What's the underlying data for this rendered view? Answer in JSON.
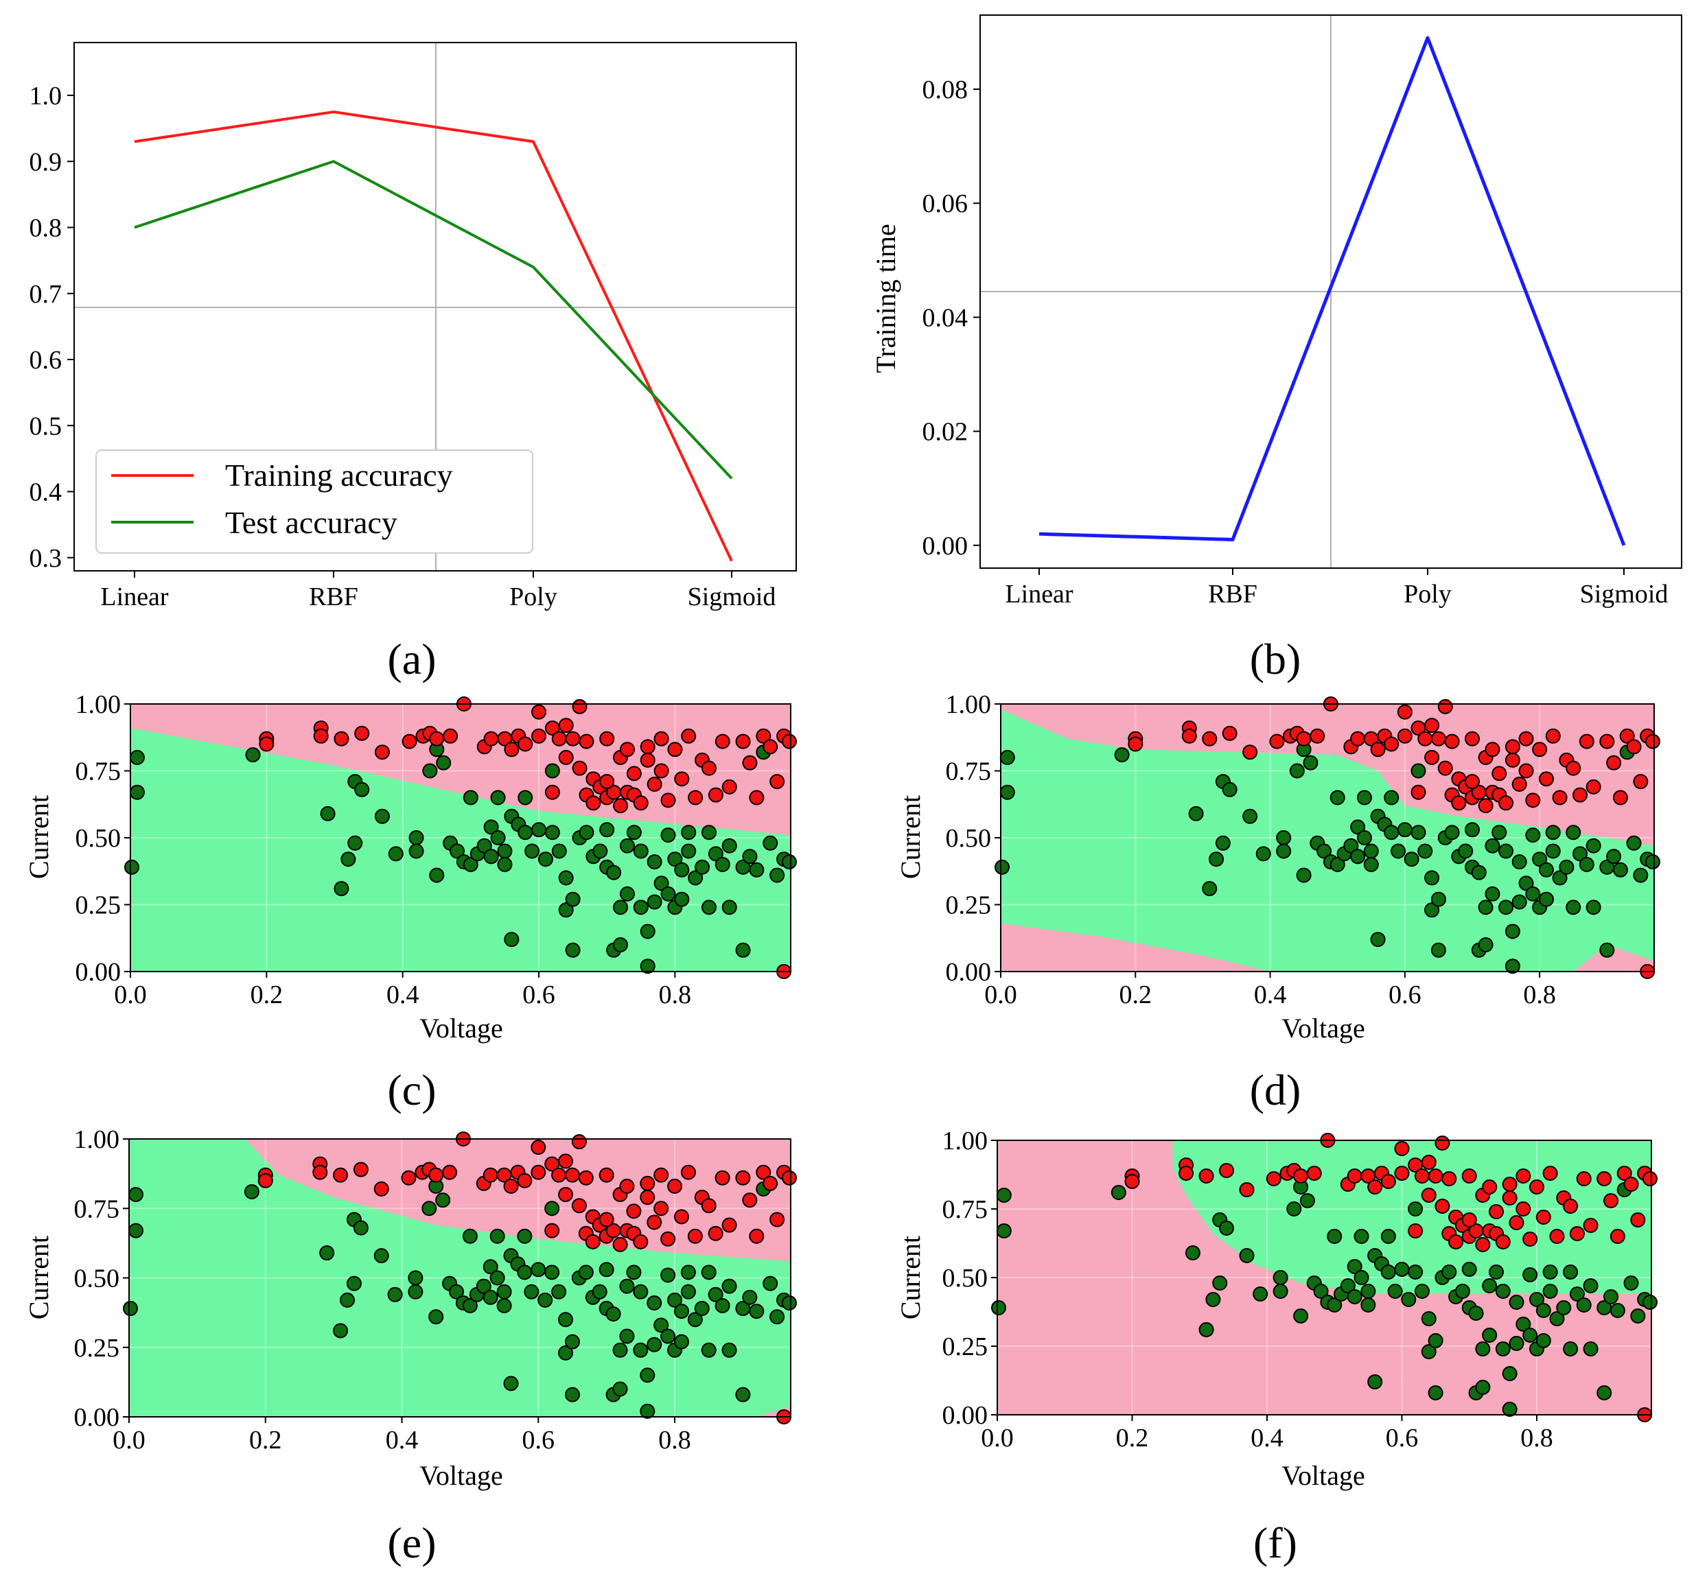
{
  "colors": {
    "train": "#ff1a1a",
    "test": "#138a13",
    "time": "#1a1aff",
    "region_red": "#f7a9bd",
    "region_green": "#6df7a3",
    "point_red": "#ee1111",
    "point_green": "#0f6b10",
    "grid": "#b0b0b0"
  },
  "chart_data": [
    {
      "id": "a",
      "type": "line",
      "caption": "(a)",
      "categories": [
        "Linear",
        "RBF",
        "Poly",
        "Sigmoid"
      ],
      "series": [
        {
          "name": "Training accuracy",
          "values": [
            0.93,
            0.975,
            0.93,
            0.295
          ]
        },
        {
          "name": "Test accuracy",
          "values": [
            0.8,
            0.9,
            0.74,
            0.42
          ]
        }
      ],
      "ylim": [
        0.28,
        1.08
      ],
      "yticks": [
        "0.3",
        "0.4",
        "0.5",
        "0.6",
        "0.7",
        "0.8",
        "0.9",
        "1.0"
      ],
      "xlabel": "",
      "ylabel": "",
      "legend": "lower-left",
      "grid": true
    },
    {
      "id": "b",
      "type": "line",
      "caption": "(b)",
      "categories": [
        "Linear",
        "RBF",
        "Poly",
        "Sigmoid"
      ],
      "series": [
        {
          "name": "Training time",
          "values": [
            0.002,
            0.001,
            0.089,
            0.0
          ]
        }
      ],
      "ylim": [
        -0.004,
        0.093
      ],
      "yticks": [
        "0.00",
        "0.02",
        "0.04",
        "0.06",
        "0.08"
      ],
      "xlabel": "",
      "ylabel": "Training time",
      "grid": true
    },
    {
      "id": "c",
      "type": "scatter",
      "caption": "(c)",
      "xlabel": "Voltage",
      "ylabel": "Current",
      "xlim": [
        0,
        0.97
      ],
      "ylim": [
        0,
        1
      ],
      "xticks": [
        "0.0",
        "0.2",
        "0.4",
        "0.6",
        "0.8"
      ],
      "yticks": [
        "0.00",
        "0.25",
        "0.50",
        "0.75",
        "1.00"
      ],
      "regions": [
        {
          "class": "red",
          "polygon": [
            [
              0,
              1
            ],
            [
              0.97,
              1
            ],
            [
              0.97,
              0.51
            ],
            [
              0.6,
              0.6
            ],
            [
              0.3,
              0.77
            ],
            [
              0,
              0.91
            ]
          ]
        },
        {
          "class": "green",
          "polygon": [
            [
              0,
              0
            ],
            [
              0.97,
              0
            ],
            [
              0.97,
              0.51
            ],
            [
              0.6,
              0.6
            ],
            [
              0.3,
              0.77
            ],
            [
              0,
              0.91
            ]
          ]
        }
      ],
      "point_set": "common"
    },
    {
      "id": "d",
      "type": "scatter",
      "caption": "(d)",
      "xlabel": "Voltage",
      "ylabel": "Current",
      "xlim": [
        0,
        0.97
      ],
      "ylim": [
        0,
        1
      ],
      "xticks": [
        "0.0",
        "0.2",
        "0.4",
        "0.6",
        "0.8"
      ],
      "yticks": [
        "0.00",
        "0.25",
        "0.50",
        "0.75",
        "1.00"
      ],
      "regions": [
        {
          "class": "green",
          "polygon": [
            [
              0,
              0.98
            ],
            [
              0.1,
              0.87
            ],
            [
              0.2,
              0.83
            ],
            [
              0.35,
              0.82
            ],
            [
              0.5,
              0.81
            ],
            [
              0.56,
              0.75
            ],
            [
              0.6,
              0.62
            ],
            [
              0.68,
              0.58
            ],
            [
              0.8,
              0.54
            ],
            [
              0.9,
              0.5
            ],
            [
              0.97,
              0.47
            ],
            [
              0.97,
              0.04
            ],
            [
              0.9,
              0.1
            ],
            [
              0.85,
              0
            ],
            [
              0.4,
              0
            ],
            [
              0.3,
              0.06
            ],
            [
              0.15,
              0.13
            ],
            [
              0,
              0.18
            ]
          ]
        }
      ],
      "region_background": "red",
      "point_set": "variant_d"
    },
    {
      "id": "e",
      "type": "scatter",
      "caption": "(e)",
      "xlabel": "Voltage",
      "ylabel": "Current",
      "xlim": [
        0,
        0.97
      ],
      "ylim": [
        0,
        1
      ],
      "xticks": [
        "0.0",
        "0.2",
        "0.4",
        "0.6",
        "0.8"
      ],
      "yticks": [
        "0.00",
        "0.25",
        "0.50",
        "0.75",
        "1.00"
      ],
      "regions": [
        {
          "class": "red",
          "polygon": [
            [
              0.17,
              1
            ],
            [
              0.97,
              1
            ],
            [
              0.97,
              0.56
            ],
            [
              0.8,
              0.59
            ],
            [
              0.6,
              0.64
            ],
            [
              0.45,
              0.69
            ],
            [
              0.3,
              0.79
            ],
            [
              0.22,
              0.87
            ]
          ]
        },
        {
          "class": "red",
          "polygon": [
            [
              0.92,
              0
            ],
            [
              0.97,
              0
            ],
            [
              0.97,
              0.04
            ]
          ]
        }
      ],
      "region_background": "green",
      "point_set": "common"
    },
    {
      "id": "f",
      "type": "scatter",
      "caption": "(f)",
      "xlabel": "Voltage",
      "ylabel": "Current",
      "xlim": [
        0,
        0.97
      ],
      "ylim": [
        0,
        1
      ],
      "xticks": [
        "0.0",
        "0.2",
        "0.4",
        "0.6",
        "0.8"
      ],
      "yticks": [
        "0.00",
        "0.25",
        "0.50",
        "0.75",
        "1.00"
      ],
      "regions": [
        {
          "class": "green",
          "polygon": [
            [
              0.26,
              1
            ],
            [
              0.97,
              1
            ],
            [
              0.97,
              0.44
            ],
            [
              0.55,
              0.44
            ],
            [
              0.45,
              0.48
            ],
            [
              0.38,
              0.55
            ],
            [
              0.32,
              0.66
            ],
            [
              0.28,
              0.8
            ],
            [
              0.26,
              0.9
            ]
          ]
        }
      ],
      "region_background": "red",
      "point_set": "common"
    }
  ],
  "scatter_points": {
    "red": [
      [
        0.2,
        0.87
      ],
      [
        0.2,
        0.85
      ],
      [
        0.28,
        0.91
      ],
      [
        0.28,
        0.88
      ],
      [
        0.31,
        0.87
      ],
      [
        0.34,
        0.89
      ],
      [
        0.37,
        0.82
      ],
      [
        0.41,
        0.86
      ],
      [
        0.43,
        0.88
      ],
      [
        0.44,
        0.89
      ],
      [
        0.47,
        0.88
      ],
      [
        0.49,
        1.0
      ],
      [
        0.52,
        0.84
      ],
      [
        0.53,
        0.87
      ],
      [
        0.55,
        0.87
      ],
      [
        0.57,
        0.88
      ],
      [
        0.58,
        0.85
      ],
      [
        0.6,
        0.88
      ],
      [
        0.6,
        0.97
      ],
      [
        0.62,
        0.91
      ],
      [
        0.63,
        0.87
      ],
      [
        0.64,
        0.92
      ],
      [
        0.65,
        0.87
      ],
      [
        0.66,
        0.99
      ],
      [
        0.67,
        0.86
      ],
      [
        0.67,
        0.66
      ],
      [
        0.68,
        0.63
      ],
      [
        0.68,
        0.72
      ],
      [
        0.69,
        0.69
      ],
      [
        0.7,
        0.87
      ],
      [
        0.7,
        0.65
      ],
      [
        0.71,
        0.67
      ],
      [
        0.72,
        0.8
      ],
      [
        0.72,
        0.62
      ],
      [
        0.73,
        0.67
      ],
      [
        0.74,
        0.74
      ],
      [
        0.74,
        0.66
      ],
      [
        0.75,
        0.63
      ],
      [
        0.76,
        0.84
      ],
      [
        0.76,
        0.79
      ],
      [
        0.77,
        0.7
      ],
      [
        0.78,
        0.75
      ],
      [
        0.79,
        0.64
      ],
      [
        0.8,
        0.83
      ],
      [
        0.81,
        0.72
      ],
      [
        0.82,
        0.88
      ],
      [
        0.83,
        0.65
      ],
      [
        0.84,
        0.79
      ],
      [
        0.85,
        0.76
      ],
      [
        0.86,
        0.66
      ],
      [
        0.87,
        0.86
      ],
      [
        0.88,
        0.69
      ],
      [
        0.9,
        0.86
      ],
      [
        0.91,
        0.78
      ],
      [
        0.92,
        0.65
      ],
      [
        0.93,
        0.88
      ],
      [
        0.94,
        0.84
      ],
      [
        0.95,
        0.71
      ],
      [
        0.96,
        0.88
      ],
      [
        0.96,
        0.0
      ],
      [
        0.62,
        0.67
      ],
      [
        0.66,
        0.76
      ],
      [
        0.7,
        0.71
      ],
      [
        0.73,
        0.83
      ],
      [
        0.78,
        0.87
      ],
      [
        0.64,
        0.8
      ],
      [
        0.56,
        0.83
      ],
      [
        0.45,
        0.87
      ],
      [
        0.98,
        0.86
      ]
    ],
    "green": [
      [
        0.0,
        0.39
      ],
      [
        0.01,
        0.8
      ],
      [
        0.01,
        0.67
      ],
      [
        0.18,
        0.81
      ],
      [
        0.29,
        0.59
      ],
      [
        0.31,
        0.31
      ],
      [
        0.32,
        0.42
      ],
      [
        0.33,
        0.48
      ],
      [
        0.33,
        0.71
      ],
      [
        0.34,
        0.68
      ],
      [
        0.37,
        0.58
      ],
      [
        0.39,
        0.44
      ],
      [
        0.42,
        0.5
      ],
      [
        0.42,
        0.45
      ],
      [
        0.44,
        0.75
      ],
      [
        0.45,
        0.36
      ],
      [
        0.45,
        0.83
      ],
      [
        0.46,
        0.78
      ],
      [
        0.47,
        0.48
      ],
      [
        0.48,
        0.45
      ],
      [
        0.49,
        0.41
      ],
      [
        0.5,
        0.4
      ],
      [
        0.51,
        0.44
      ],
      [
        0.52,
        0.47
      ],
      [
        0.53,
        0.54
      ],
      [
        0.53,
        0.43
      ],
      [
        0.54,
        0.65
      ],
      [
        0.54,
        0.5
      ],
      [
        0.55,
        0.45
      ],
      [
        0.55,
        0.4
      ],
      [
        0.56,
        0.58
      ],
      [
        0.56,
        0.12
      ],
      [
        0.57,
        0.55
      ],
      [
        0.58,
        0.52
      ],
      [
        0.59,
        0.45
      ],
      [
        0.6,
        0.53
      ],
      [
        0.61,
        0.42
      ],
      [
        0.62,
        0.52
      ],
      [
        0.63,
        0.45
      ],
      [
        0.64,
        0.23
      ],
      [
        0.64,
        0.35
      ],
      [
        0.65,
        0.27
      ],
      [
        0.65,
        0.08
      ],
      [
        0.66,
        0.5
      ],
      [
        0.67,
        0.52
      ],
      [
        0.68,
        0.43
      ],
      [
        0.69,
        0.45
      ],
      [
        0.7,
        0.53
      ],
      [
        0.7,
        0.39
      ],
      [
        0.71,
        0.37
      ],
      [
        0.71,
        0.08
      ],
      [
        0.72,
        0.1
      ],
      [
        0.72,
        0.24
      ],
      [
        0.73,
        0.47
      ],
      [
        0.73,
        0.29
      ],
      [
        0.74,
        0.52
      ],
      [
        0.75,
        0.24
      ],
      [
        0.75,
        0.45
      ],
      [
        0.76,
        0.02
      ],
      [
        0.76,
        0.15
      ],
      [
        0.77,
        0.26
      ],
      [
        0.77,
        0.41
      ],
      [
        0.78,
        0.33
      ],
      [
        0.79,
        0.51
      ],
      [
        0.79,
        0.29
      ],
      [
        0.8,
        0.42
      ],
      [
        0.8,
        0.24
      ],
      [
        0.81,
        0.38
      ],
      [
        0.81,
        0.27
      ],
      [
        0.82,
        0.52
      ],
      [
        0.82,
        0.45
      ],
      [
        0.83,
        0.35
      ],
      [
        0.84,
        0.39
      ],
      [
        0.85,
        0.52
      ],
      [
        0.85,
        0.24
      ],
      [
        0.86,
        0.44
      ],
      [
        0.87,
        0.4
      ],
      [
        0.88,
        0.47
      ],
      [
        0.88,
        0.24
      ],
      [
        0.9,
        0.39
      ],
      [
        0.9,
        0.08
      ],
      [
        0.91,
        0.43
      ],
      [
        0.92,
        0.38
      ],
      [
        0.93,
        0.82
      ],
      [
        0.94,
        0.48
      ],
      [
        0.95,
        0.36
      ],
      [
        0.96,
        0.42
      ],
      [
        0.97,
        0.41
      ],
      [
        0.62,
        0.75
      ],
      [
        0.58,
        0.65
      ],
      [
        0.5,
        0.65
      ]
    ]
  }
}
